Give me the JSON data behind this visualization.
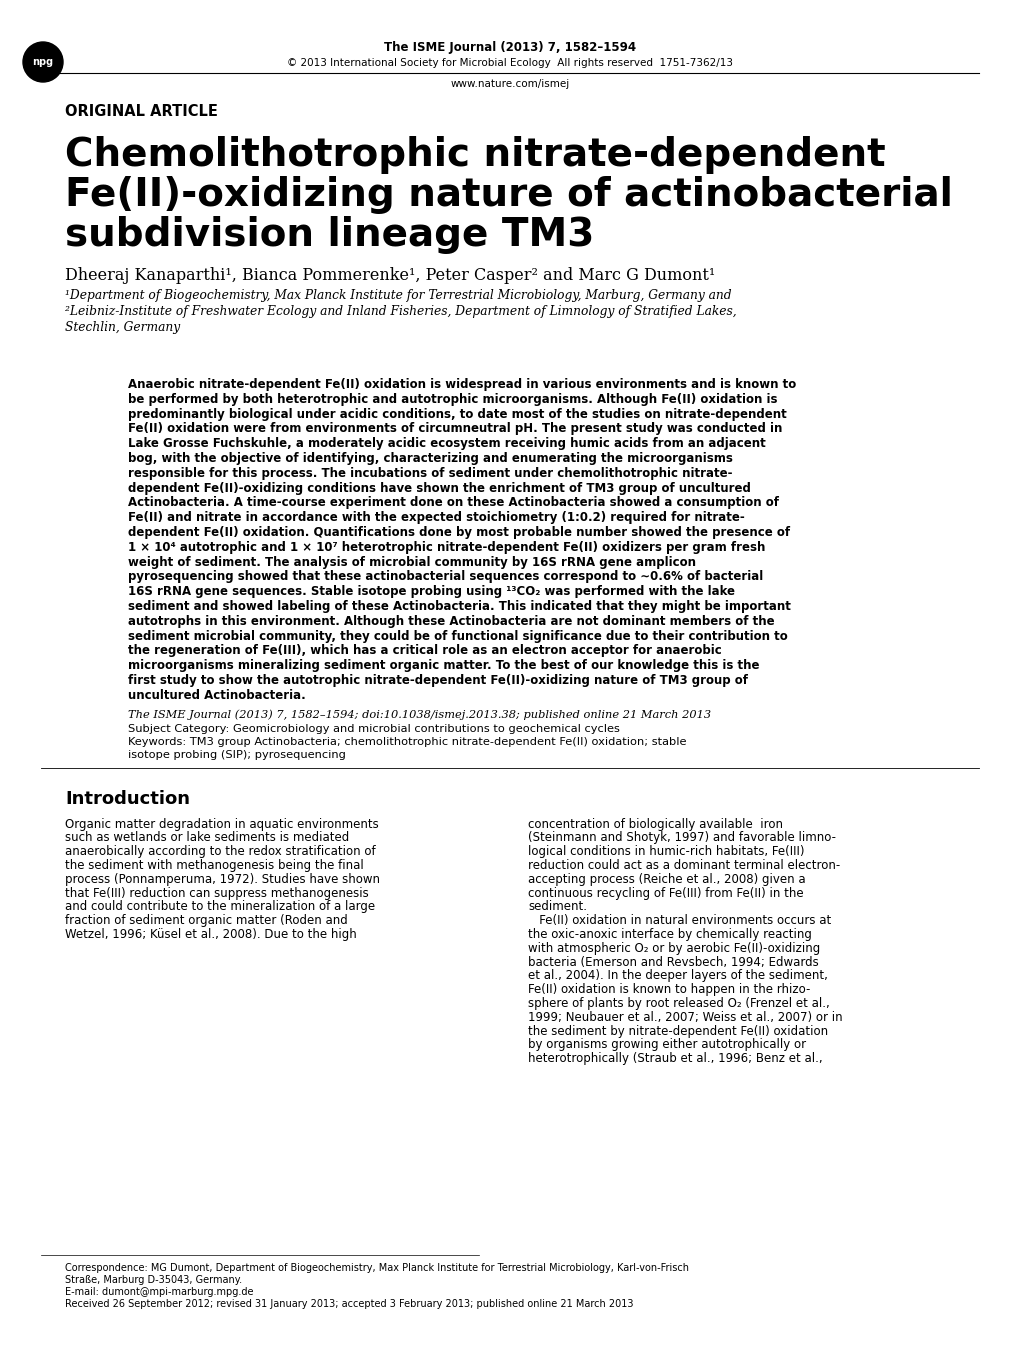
{
  "background_color": "#ffffff",
  "header_journal": "The ISME Journal (2013) 7, 1582–1594",
  "header_copyright": "© 2013 International Society for Microbial Ecology  All rights reserved  1751-7362/13",
  "header_url": "www.nature.com/ismej",
  "section_label": "ORIGINAL ARTICLE",
  "title_line1": "Chemolithotrophic nitrate-dependent",
  "title_line2": "Fe(II)-oxidizing nature of actinobacterial",
  "title_line3": "subdivision lineage TM3",
  "authors": "Dheeraj Kanaparthi¹, Bianca Pommerenke¹, Peter Casper² and Marc G Dumont¹",
  "affil1": "¹Department of Biogeochemistry, Max Planck Institute for Terrestrial Microbiology, Marburg, Germany and",
  "affil2": "²Leibniz-Institute of Freshwater Ecology and Inland Fisheries, Department of Limnology of Stratified Lakes,",
  "affil3": "Stechlin, Germany",
  "abstract_lines": [
    "Anaerobic nitrate-dependent Fe(II) oxidation is widespread in various environments and is known to",
    "be performed by both heterotrophic and autotrophic microorganisms. Although Fe(II) oxidation is",
    "predominantly biological under acidic conditions, to date most of the studies on nitrate-dependent",
    "Fe(II) oxidation were from environments of circumneutral pH. The present study was conducted in",
    "Lake Grosse Fuchskuhle, a moderately acidic ecosystem receiving humic acids from an adjacent",
    "bog, with the objective of identifying, characterizing and enumerating the microorganisms",
    "responsible for this process. The incubations of sediment under chemolithotrophic nitrate-",
    "dependent Fe(II)-oxidizing conditions have shown the enrichment of TM3 group of uncultured",
    "Actinobacteria. A time-course experiment done on these Actinobacteria showed a consumption of",
    "Fe(II) and nitrate in accordance with the expected stoichiometry (1:0.2) required for nitrate-",
    "dependent Fe(II) oxidation. Quantifications done by most probable number showed the presence of",
    "1 × 10⁴ autotrophic and 1 × 10⁷ heterotrophic nitrate-dependent Fe(II) oxidizers per gram fresh",
    "weight of sediment. The analysis of microbial community by 16S rRNA gene amplicon",
    "pyrosequencing showed that these actinobacterial sequences correspond to ∼0.6% of bacterial",
    "16S rRNA gene sequences. Stable isotope probing using ¹³CO₂ was performed with the lake",
    "sediment and showed labeling of these Actinobacteria. This indicated that they might be important",
    "autotrophs in this environment. Although these Actinobacteria are not dominant members of the",
    "sediment microbial community, they could be of functional significance due to their contribution to",
    "the regeneration of Fe(III), which has a critical role as an electron acceptor for anaerobic",
    "microorganisms mineralizing sediment organic matter. To the best of our knowledge this is the",
    "first study to show the autotrophic nitrate-dependent Fe(II)-oxidizing nature of TM3 group of",
    "uncultured Actinobacteria."
  ],
  "citation_line": "The ISME Journal (2013) 7, 1582–1594; doi:10.1038/ismej.2013.38; published online 21 March 2013",
  "subject_category": "Subject Category: Geomicrobiology and microbial contributions to geochemical cycles",
  "keywords": "Keywords: TM3 group Actinobacteria; chemolithotrophic nitrate-dependent Fe(II) oxidation; stable",
  "keywords2": "isotope probing (SIP); pyrosequencing",
  "intro_heading": "Introduction",
  "intro_col1_lines": [
    "Organic matter degradation in aquatic environments",
    "such as wetlands or lake sediments is mediated",
    "anaerobically according to the redox stratification of",
    "the sediment with methanogenesis being the final",
    "process (Ponnamperuma, 1972). Studies have shown",
    "that Fe(III) reduction can suppress methanogenesis",
    "and could contribute to the mineralization of a large",
    "fraction of sediment organic matter (Roden and",
    "Wetzel, 1996; Küsel et al., 2008). Due to the high"
  ],
  "intro_col2_lines": [
    "concentration of biologically available  iron",
    "(Steinmann and Shotyk, 1997) and favorable limno-",
    "logical conditions in humic-rich habitats, Fe(III)",
    "reduction could act as a dominant terminal electron-",
    "accepting process (Reiche et al., 2008) given a",
    "continuous recycling of Fe(III) from Fe(II) in the",
    "sediment.",
    "   Fe(II) oxidation in natural environments occurs at",
    "the oxic-anoxic interface by chemically reacting",
    "with atmospheric O₂ or by aerobic Fe(II)-oxidizing",
    "bacteria (Emerson and Revsbech, 1994; Edwards",
    "et al., 2004). In the deeper layers of the sediment,",
    "Fe(II) oxidation is known to happen in the rhizo-",
    "sphere of plants by root released O₂ (Frenzel et al.,",
    "1999; Neubauer et al., 2007; Weiss et al., 2007) or in",
    "the sediment by nitrate-dependent Fe(II) oxidation",
    "by organisms growing either autotrophically or",
    "heterotrophically (Straub et al., 1996; Benz et al.,"
  ],
  "corr_lines": [
    "Correspondence: MG Dumont, Department of Biogeochemistry, Max Planck Institute for Terrestrial Microbiology, Karl-von-Frisch",
    "Straße, Marburg D-35043, Germany.",
    "E-mail: dumont@mpi-marburg.mpg.de",
    "Received 26 September 2012; revised 31 January 2013; accepted 3 February 2013; published online 21 March 2013"
  ]
}
